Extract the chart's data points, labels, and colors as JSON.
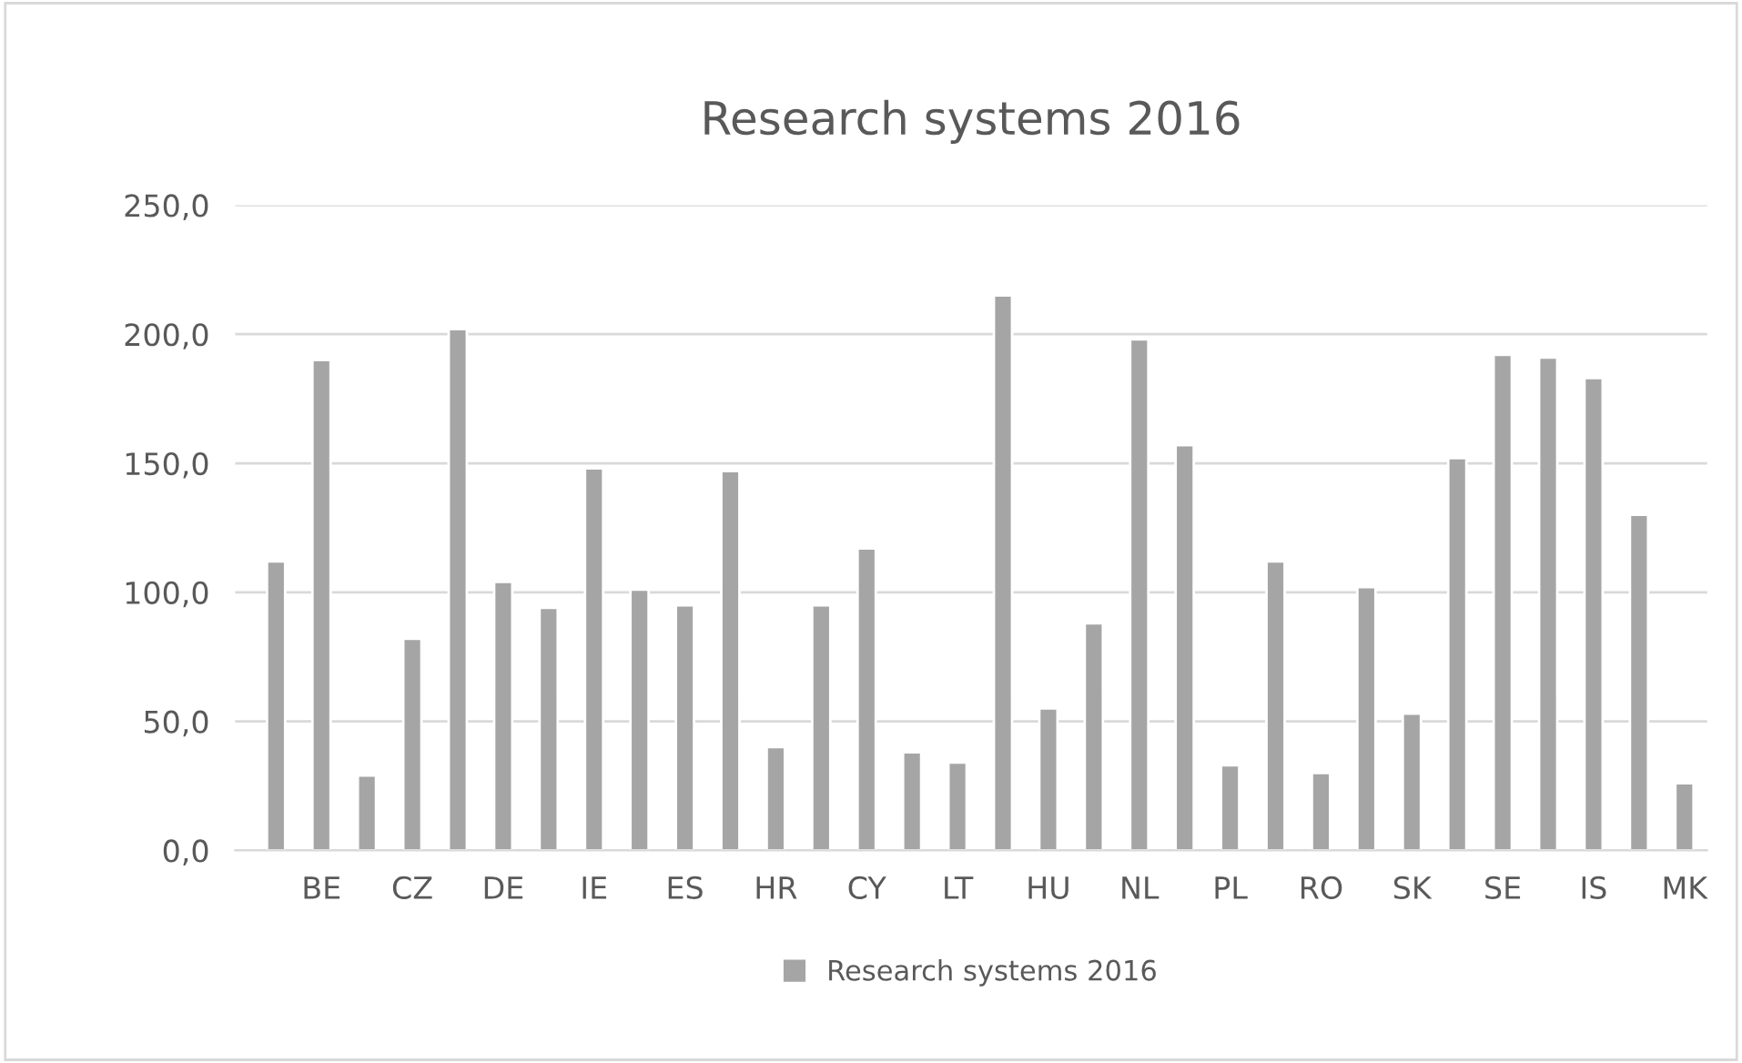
{
  "chart_data": {
    "type": "bar",
    "title": "Research systems 2016",
    "categories": [
      null,
      "BE",
      null,
      "CZ",
      null,
      "DE",
      null,
      "IE",
      null,
      "ES",
      null,
      "HR",
      null,
      "CY",
      null,
      "LT",
      null,
      "HU",
      null,
      "NL",
      null,
      "PL",
      null,
      "RO",
      null,
      "SK",
      null,
      "SE",
      null,
      "IS",
      null,
      "MK"
    ],
    "series": [
      {
        "name": "Research systems 2016",
        "color": "#a5a5a5",
        "values": [
          112,
          190,
          29,
          82,
          202,
          104,
          94,
          148,
          101,
          95,
          147,
          40,
          95,
          117,
          38,
          34,
          215,
          55,
          88,
          198,
          157,
          33,
          112,
          30,
          102,
          53,
          152,
          192,
          191,
          183,
          130,
          26
        ]
      }
    ],
    "ylim": [
      0,
      250
    ],
    "yticks": [
      {
        "value": 0,
        "label": "0,0"
      },
      {
        "value": 50,
        "label": "50,0"
      },
      {
        "value": 100,
        "label": "100,0"
      },
      {
        "value": 150,
        "label": "150,0"
      },
      {
        "value": 200,
        "label": "200,0"
      },
      {
        "value": 250,
        "label": "250,0"
      }
    ],
    "grid": "y",
    "legend": "bottom"
  }
}
